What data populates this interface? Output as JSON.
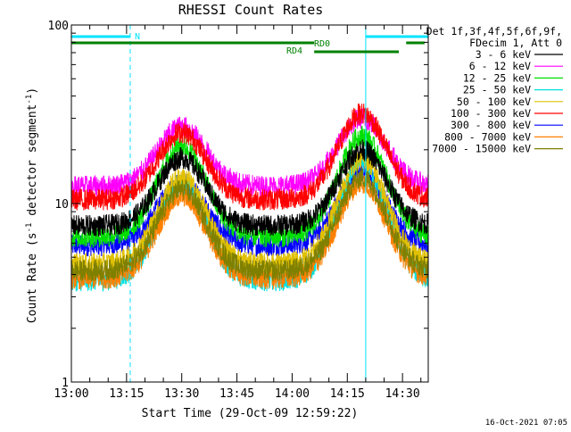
{
  "chart_data": {
    "type": "line",
    "title": "RHESSI Count Rates",
    "xlabel": "Start Time (29-Oct-09 12:59:22)",
    "ylabel_prefix": "Count Rate (s",
    "ylabel_sup": "-1",
    "ylabel_mid": " detector segment",
    "ylabel_sup2": "-1",
    "ylabel_suffix": ")",
    "yscale": "log",
    "ylim": [
      1,
      100
    ],
    "yticks": [
      {
        "value": 1,
        "label": "1"
      },
      {
        "value": 10,
        "label": "10"
      },
      {
        "value": 100,
        "label": "100"
      }
    ],
    "xlim_minutes": [
      0,
      97
    ],
    "xticks": [
      {
        "minute": 0,
        "label": "13:00"
      },
      {
        "minute": 15,
        "label": "13:15"
      },
      {
        "minute": 30,
        "label": "13:30"
      },
      {
        "minute": 45,
        "label": "13:45"
      },
      {
        "minute": 60,
        "label": "14:00"
      },
      {
        "minute": 75,
        "label": "14:15"
      },
      {
        "minute": 90,
        "label": "14:30"
      }
    ],
    "legend_header": [
      "Det 1f,3f,4f,5f,6f,9f,",
      "FDecim 1, Att 0"
    ],
    "legend_position": "right",
    "series": [
      {
        "name": "3 - 6 keV",
        "color": "#000000",
        "baseline": 7.5,
        "peak1": 18,
        "peak2": 20
      },
      {
        "name": "6 - 12 keV",
        "color": "#ff00ff",
        "baseline": 12.5,
        "peak1": 27,
        "peak2": 30
      },
      {
        "name": "12 - 25 keV",
        "color": "#00e000",
        "baseline": 6.5,
        "peak1": 21,
        "peak2": 24
      },
      {
        "name": "25 - 50 keV",
        "color": "#00e0e0",
        "baseline": 3.7,
        "peak1": 13,
        "peak2": 17
      },
      {
        "name": "50 - 100 keV",
        "color": "#e0c000",
        "baseline": 4.6,
        "peak1": 14,
        "peak2": 18
      },
      {
        "name": "100 - 300 keV",
        "color": "#ff0000",
        "baseline": 10.5,
        "peak1": 25,
        "peak2": 32
      },
      {
        "name": "300 - 800 keV",
        "color": "#0000ff",
        "baseline": 5.8,
        "peak1": 13,
        "peak2": 15
      },
      {
        "name": "800 - 7000 keV",
        "color": "#ff8000",
        "baseline": 3.8,
        "peak1": 11,
        "peak2": 13
      },
      {
        "name": "7000 - 15000 keV",
        "color": "#808000",
        "baseline": 4.2,
        "peak1": 12,
        "peak2": 14
      }
    ],
    "night_intervals_minutes": [
      [
        0,
        16
      ],
      [
        80,
        97
      ]
    ],
    "night_label": "N",
    "rd_bars": [
      {
        "label": "RD0",
        "segments": [
          [
            0,
            66
          ],
          [
            91,
            96
          ]
        ]
      },
      {
        "label": "RD4",
        "segments": [
          [
            66,
            89
          ]
        ]
      }
    ],
    "bar_colors": {
      "night": "#00e5ff",
      "rd": "#008000"
    }
  },
  "timestamp": "16-Oct-2021 07:05"
}
